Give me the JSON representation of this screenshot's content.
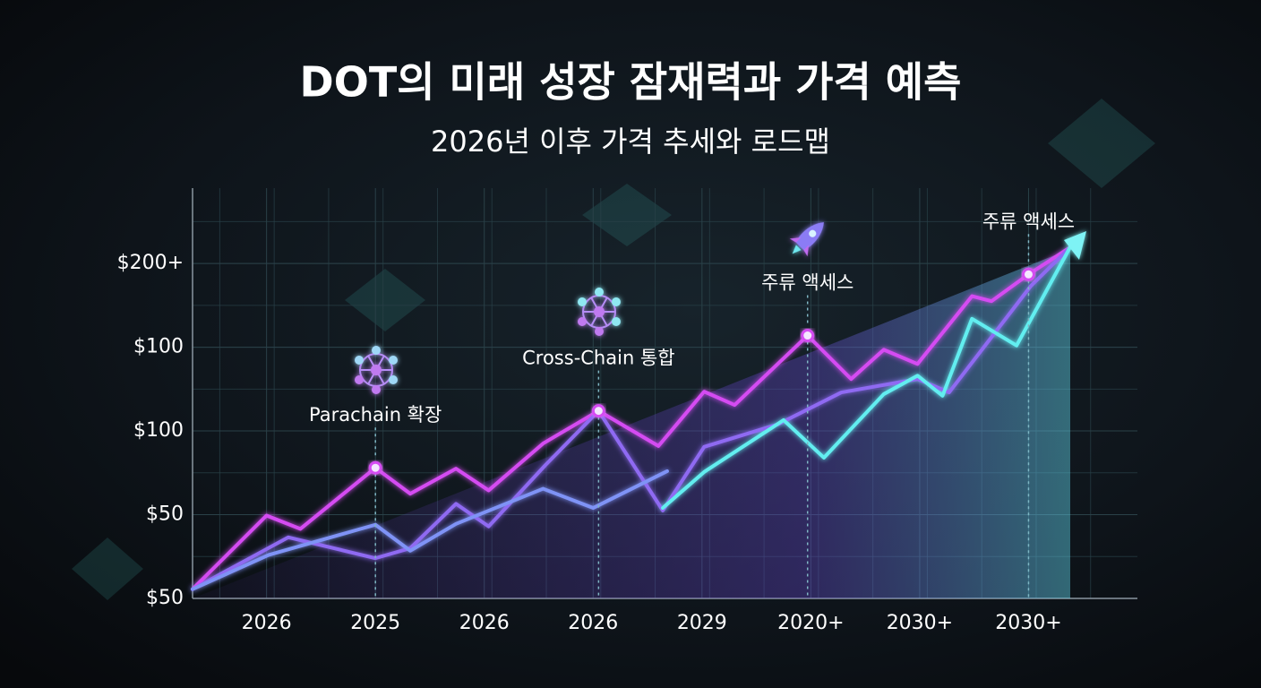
{
  "chart_data": {
    "type": "line",
    "title": "DOT의 미래 성장 잠재력과 가격 예측",
    "subtitle": "2026년 이후 가격 추세와 로드맵",
    "xlim": [
      -0.68,
      8.0
    ],
    "xticks": [
      {
        "value": 0,
        "label": "2026"
      },
      {
        "value": 1,
        "label": "2025"
      },
      {
        "value": 2,
        "label": "2026"
      },
      {
        "value": 3,
        "label": "2026"
      },
      {
        "value": 4,
        "label": "2029"
      },
      {
        "value": 5,
        "label": "2020+"
      },
      {
        "value": 6,
        "label": "2030+"
      },
      {
        "value": 7,
        "label": "2030+"
      }
    ],
    "ylim": [
      0,
      4.9
    ],
    "yticks": [
      {
        "value": 0,
        "label": "$50"
      },
      {
        "value": 1,
        "label": "$50"
      },
      {
        "value": 2,
        "label": "$100"
      },
      {
        "value": 3,
        "label": "$100"
      },
      {
        "value": 4,
        "label": "$200+"
      }
    ],
    "grid": true,
    "series": [
      {
        "color": "#d54cf2",
        "x": [
          -0.68,
          0,
          0.31,
          1.0,
          1.32,
          1.74,
          2.04,
          2.54,
          3.05,
          3.6,
          4.02,
          4.3,
          4.97,
          5.37,
          5.67,
          5.98,
          6.48,
          6.66,
          7.0,
          7.38
        ],
        "values": [
          0.11,
          0.99,
          0.83,
          1.56,
          1.25,
          1.55,
          1.29,
          1.85,
          2.24,
          1.82,
          2.47,
          2.31,
          3.14,
          2.62,
          2.97,
          2.8,
          3.61,
          3.55,
          3.87,
          4.19
        ]
      },
      {
        "color": "#8f6af2",
        "x": [
          -0.68,
          0.2,
          1.0,
          1.32,
          1.74,
          2.04,
          2.56,
          3.05,
          3.64,
          4.02,
          4.7,
          5.28,
          5.98,
          6.27,
          7.02,
          7.38
        ],
        "values": [
          0.11,
          0.73,
          0.48,
          0.6,
          1.13,
          0.86,
          1.59,
          2.24,
          1.05,
          1.81,
          2.08,
          2.46,
          2.62,
          2.46,
          3.73,
          4.19
        ]
      },
      {
        "color": "#7f93f6",
        "x": [
          -0.68,
          0.02,
          1.0,
          1.32,
          1.74,
          2.54,
          3.0,
          3.68
        ],
        "values": [
          0.11,
          0.52,
          0.88,
          0.57,
          0.89,
          1.31,
          1.08,
          1.52
        ]
      },
      {
        "color": "#62eef0",
        "x": [
          3.64,
          4.02,
          4.75,
          5.12,
          5.67,
          5.98,
          6.21,
          6.48,
          6.89,
          7.38
        ],
        "values": [
          1.08,
          1.51,
          2.13,
          1.68,
          2.44,
          2.66,
          2.42,
          3.34,
          3.02,
          4.19
        ]
      }
    ],
    "annotations": [
      {
        "text": "Parachain 확장",
        "x": 1.0,
        "y": 1.56
      },
      {
        "text": "Cross-Chain 통합",
        "x": 3.05,
        "y": 2.24
      },
      {
        "text": "주류 액세스",
        "x": 4.97,
        "y": 3.14
      },
      {
        "text": "주류 액세스",
        "x": 7.0,
        "y": 3.87
      }
    ]
  }
}
